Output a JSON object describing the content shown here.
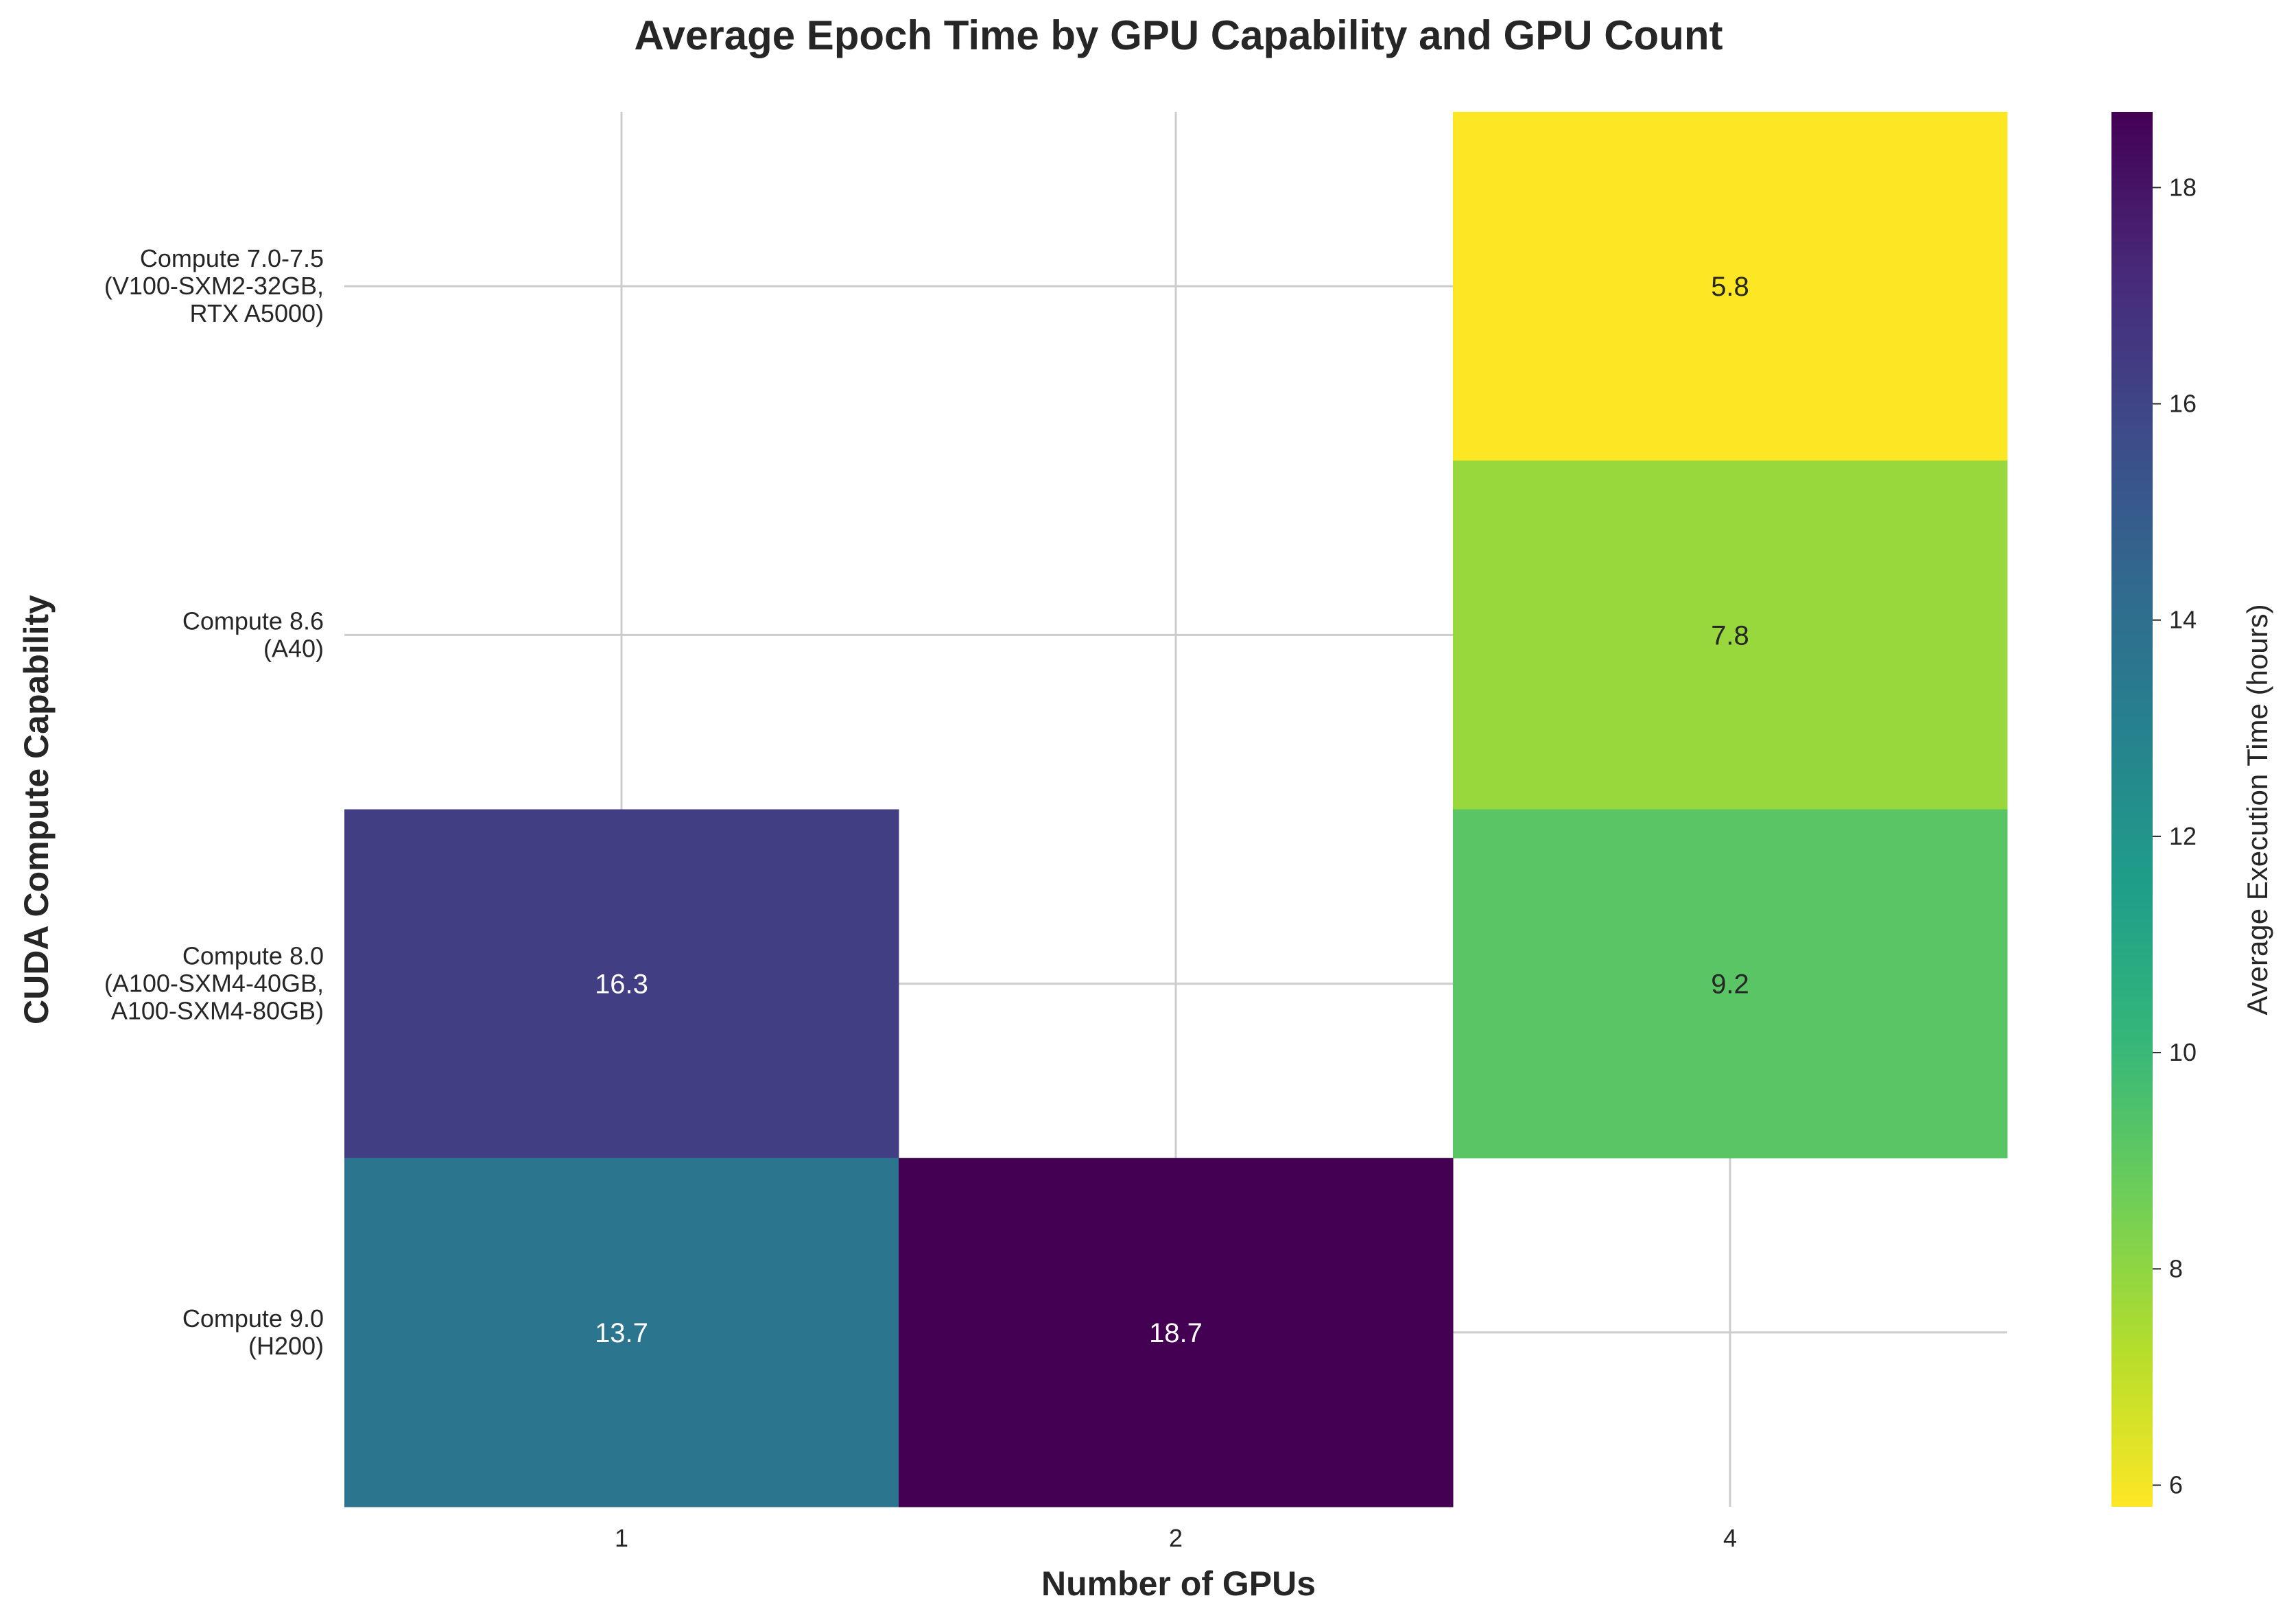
{
  "chart_data": {
    "type": "heatmap",
    "title": "Average Epoch Time by GPU Capability and GPU Count",
    "xlabel": "Number of GPUs",
    "ylabel": "CUDA Compute Capability",
    "x_categories": [
      "1",
      "2",
      "4"
    ],
    "y_categories": [
      [
        "Compute 7.0-7.5",
        "(V100-SXM2-32GB,",
        "RTX A5000)"
      ],
      [
        "Compute 8.6",
        "(A40)"
      ],
      [
        "Compute 8.0",
        "(A100-SXM4-40GB,",
        "A100-SXM4-80GB)"
      ],
      [
        "Compute 9.0",
        "(H200)"
      ]
    ],
    "values": [
      [
        null,
        null,
        5.8
      ],
      [
        null,
        null,
        7.8
      ],
      [
        16.3,
        null,
        9.2
      ],
      [
        13.7,
        18.7,
        null
      ]
    ],
    "value_labels": [
      [
        null,
        null,
        "5.8"
      ],
      [
        null,
        null,
        "7.8"
      ],
      [
        "16.3",
        null,
        "9.2"
      ],
      [
        "13.7",
        "18.7",
        null
      ]
    ],
    "colorbar": {
      "label": "Average Execution Time (hours)",
      "range": [
        5.8,
        18.7
      ],
      "ticks": [
        "6",
        "8",
        "10",
        "12",
        "14",
        "16",
        "18"
      ],
      "colormap": "viridis_r"
    },
    "grid": true
  }
}
